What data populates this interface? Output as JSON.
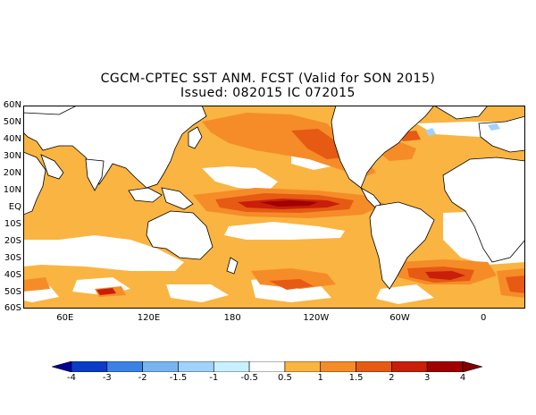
{
  "title": {
    "line1": "CGCM-CPTEC SST ANM. FCST  (Valid for SON 2015)",
    "line2": "Issued:  082015 IC 072015"
  },
  "map": {
    "lat_labels": [
      "60N",
      "50N",
      "40N",
      "30N",
      "20N",
      "10N",
      "EQ",
      "10S",
      "20S",
      "30S",
      "40S",
      "50S",
      "60S"
    ],
    "lon_labels": [
      {
        "label": "60E",
        "lon": 60
      },
      {
        "label": "120E",
        "lon": 120
      },
      {
        "label": "180",
        "lon": 180
      },
      {
        "label": "120W",
        "lon": 240
      },
      {
        "label": "60W",
        "lon": 300
      },
      {
        "label": "0",
        "lon": 360
      }
    ],
    "lon_range": [
      30,
      390
    ],
    "lat_range": [
      -60,
      60
    ]
  },
  "colorbar": {
    "levels": [
      "-4",
      "-3",
      "-2",
      "-1.5",
      "-1",
      "-0.5",
      "0.5",
      "1",
      "1.5",
      "2",
      "3",
      "4"
    ],
    "colors": [
      "#000096",
      "#0a3cc8",
      "#3c82e6",
      "#78b4f0",
      "#a0d2fa",
      "#c8f0ff",
      "#ffffff",
      "#fab441",
      "#f58c28",
      "#e65a14",
      "#c81e0a",
      "#a00000",
      "#820000"
    ]
  }
}
